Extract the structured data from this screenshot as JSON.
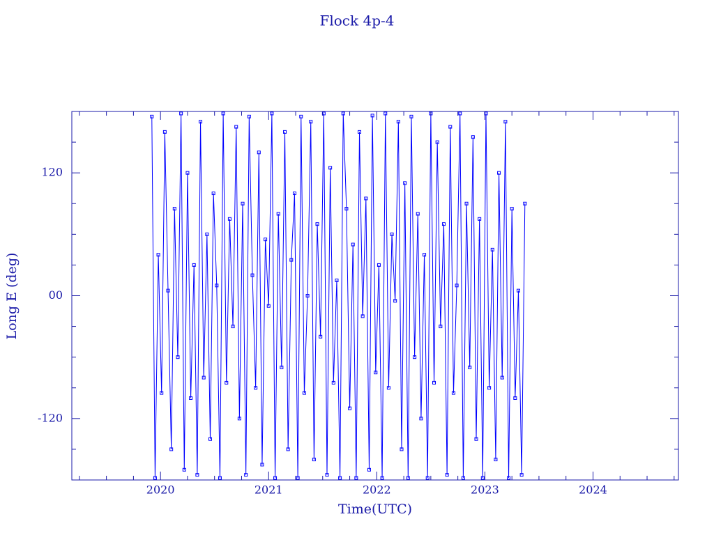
{
  "chart_data": {
    "type": "line",
    "title": "Flock 4p-4",
    "x_label": "Time(UTC)",
    "y_label": "Long E (deg)",
    "x": [
      2019.92,
      2019.95,
      2019.98,
      2020.01,
      2020.04,
      2020.07,
      2020.1,
      2020.13,
      2020.16,
      2020.19,
      2020.22,
      2020.25,
      2020.28,
      2020.31,
      2020.34,
      2020.37,
      2020.4,
      2020.43,
      2020.46,
      2020.49,
      2020.52,
      2020.55,
      2020.58,
      2020.61,
      2020.64,
      2020.67,
      2020.7,
      2020.73,
      2020.76,
      2020.79,
      2020.82,
      2020.85,
      2020.88,
      2020.91,
      2020.94,
      2020.97,
      2021.0,
      2021.03,
      2021.06,
      2021.09,
      2021.12,
      2021.15,
      2021.18,
      2021.21,
      2021.24,
      2021.27,
      2021.3,
      2021.33,
      2021.36,
      2021.39,
      2021.42,
      2021.45,
      2021.48,
      2021.51,
      2021.54,
      2021.57,
      2021.6,
      2021.63,
      2021.66,
      2021.69,
      2021.72,
      2021.75,
      2021.78,
      2021.81,
      2021.84,
      2021.87,
      2021.9,
      2021.93,
      2021.96,
      2021.99,
      2022.02,
      2022.05,
      2022.08,
      2022.11,
      2022.14,
      2022.17,
      2022.2,
      2022.23,
      2022.26,
      2022.29,
      2022.32,
      2022.35,
      2022.38,
      2022.41,
      2022.44,
      2022.47,
      2022.5,
      2022.53,
      2022.56,
      2022.59,
      2022.62,
      2022.65,
      2022.68,
      2022.71,
      2022.74,
      2022.77,
      2022.8,
      2022.83,
      2022.86,
      2022.89,
      2022.92,
      2022.95,
      2022.98,
      2023.01,
      2023.04,
      2023.07,
      2023.1,
      2023.13,
      2023.16,
      2023.19,
      2023.22,
      2023.25,
      2023.28,
      2023.31,
      2023.34,
      2023.37
    ],
    "series": [
      {
        "color": "#0000ff",
        "values": [
          175,
          -178,
          40,
          -95,
          160,
          5,
          -150,
          85,
          -60,
          178,
          -170,
          120,
          -100,
          30,
          -175,
          170,
          -80,
          60,
          -140,
          100,
          10,
          -178,
          178,
          -85,
          75,
          -30,
          165,
          -120,
          90,
          -175,
          175,
          20,
          -90,
          140,
          -165,
          55,
          -10,
          178,
          -178,
          80,
          -70,
          160,
          -150,
          35,
          100,
          -178,
          175,
          -95,
          0,
          170,
          -160,
          70,
          -40,
          178,
          -175,
          125,
          -85,
          15,
          -178,
          178,
          85,
          -110,
          50,
          -178,
          160,
          -20,
          95,
          -170,
          176,
          -75,
          30,
          -178,
          178,
          -90,
          60,
          -5,
          170,
          -150,
          110,
          -178,
          175,
          -60,
          80,
          -120,
          40,
          -178,
          178,
          -85,
          150,
          -30,
          70,
          -175,
          165,
          -95,
          10,
          178,
          -178,
          90,
          -70,
          155,
          -140,
          75,
          -178,
          178,
          -90,
          45,
          -160,
          120,
          -80,
          170,
          -178,
          85,
          -100,
          5,
          -175,
          90
        ]
      }
    ],
    "xlim": [
      2019.18,
      2024.79
    ],
    "xticks": [
      2020,
      2021,
      2022,
      2023,
      2024
    ],
    "xminorticks": [
      2019.25,
      2019.5,
      2019.75,
      2020.25,
      2020.5,
      2020.75,
      2021.25,
      2021.5,
      2021.75,
      2022.25,
      2022.5,
      2022.75,
      2023.25,
      2023.5,
      2023.75,
      2024.25,
      2024.5,
      2024.75
    ],
    "ylim": [
      -180,
      180
    ],
    "yticks": [
      120,
      {
        "value": 0,
        "label": "00"
      },
      -120
    ],
    "yminorticks": [
      -150,
      -90,
      -60,
      -30,
      30,
      60,
      90,
      150
    ]
  }
}
